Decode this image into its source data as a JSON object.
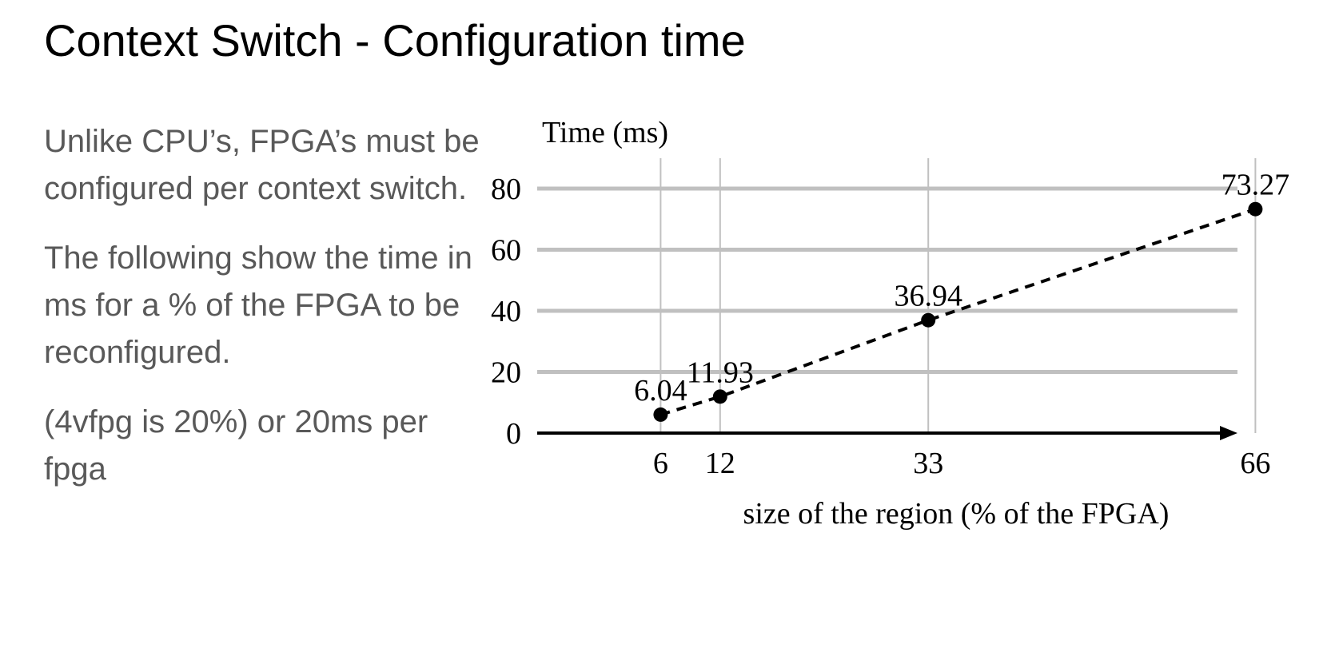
{
  "slide": {
    "title": "Context Switch - Configuration time",
    "paragraphs": [
      "Unlike CPU’s, FPGA’s must be configured per context switch.",
      "The following show the time in ms for a % of the FPGA to be reconfigured.",
      "(4vfpg is 20%) or 20ms per fpga"
    ]
  },
  "chart_data": {
    "type": "line",
    "title": "",
    "xlabel": "size of the region (% of the FPGA)",
    "ylabel": "Time (ms)",
    "x": [
      6,
      12,
      33,
      66
    ],
    "series": [
      {
        "values": [
          6.04,
          11.93,
          36.94,
          73.27
        ]
      }
    ],
    "data_labels": [
      "6.04",
      "11.93",
      "36.94",
      "73.27"
    ],
    "x_ticks": [
      "6",
      "12",
      "33",
      "66"
    ],
    "y_ticks": [
      "0",
      "20",
      "40",
      "60",
      "80"
    ],
    "xlim": [
      0,
      70
    ],
    "ylim": [
      0,
      90
    ],
    "grid": true,
    "line_style": "dashed",
    "marker": "circle",
    "colors": {
      "grid": "#c0c0c0",
      "line": "#000000",
      "marker": "#000000"
    }
  }
}
